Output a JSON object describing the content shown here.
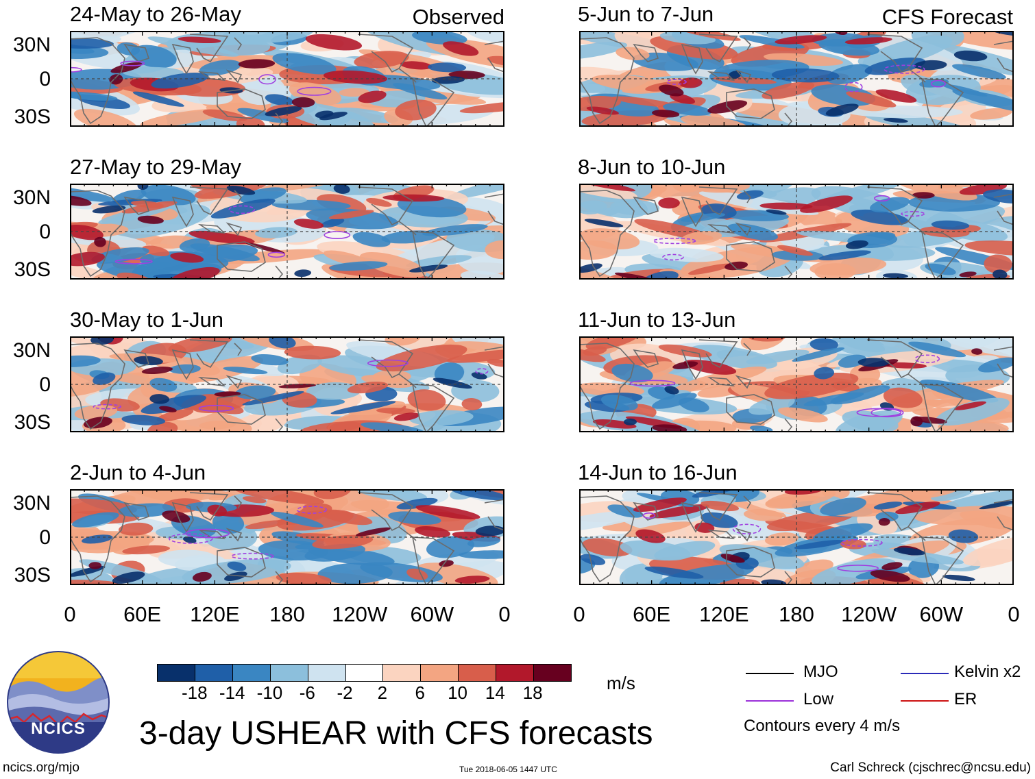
{
  "panels_left": [
    {
      "title": "24-May to 26-May",
      "corner": "Observed"
    },
    {
      "title": "27-May to 29-May",
      "corner": ""
    },
    {
      "title": "30-May to 1-Jun",
      "corner": ""
    },
    {
      "title": "2-Jun to 4-Jun",
      "corner": ""
    }
  ],
  "panels_right": [
    {
      "title": "5-Jun to 7-Jun",
      "corner": "CFS Forecast"
    },
    {
      "title": "8-Jun to 10-Jun",
      "corner": ""
    },
    {
      "title": "11-Jun to 13-Jun",
      "corner": ""
    },
    {
      "title": "14-Jun to 16-Jun",
      "corner": ""
    }
  ],
  "y_labels": [
    "30N",
    "0",
    "30S"
  ],
  "x_labels": [
    "0",
    "60E",
    "120E",
    "180",
    "120W",
    "60W",
    "0"
  ],
  "colorbar": {
    "colors": [
      "#08306b",
      "#1f5fa8",
      "#3a86c2",
      "#8cbfdc",
      "#cfe3f0",
      "#ffffff",
      "#fbd4c0",
      "#f3a582",
      "#d85e4b",
      "#b2182b",
      "#67001f"
    ],
    "ticks": [
      "-18",
      "-14",
      "-10",
      "-6",
      "-2",
      "2",
      "6",
      "10",
      "14",
      "18"
    ],
    "unit": "m/s"
  },
  "legend": {
    "items": [
      {
        "label": "MJO",
        "color": "#000000"
      },
      {
        "label": "Kelvin x2",
        "color": "#2a2ab8"
      },
      {
        "label": "Low",
        "color": "#9b30d9"
      },
      {
        "label": "ER",
        "color": "#cc1111"
      }
    ],
    "contour_note": "Contours every 4 m/s"
  },
  "logo_text": "NCICS",
  "main_title": "3-day USHEAR with CFS forecasts",
  "footer": {
    "left": "ncics.org/mjo",
    "center": "Tue 2018-06-05 1447 UTC",
    "right": "Carl Schreck (cjschrec@ncsu.edu)"
  }
}
